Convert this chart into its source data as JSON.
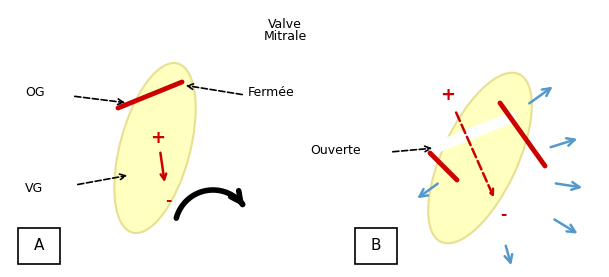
{
  "bg_color": "#ffffff",
  "ellipse_color": "#ffffc0",
  "ellipse_edge": "#e8e090",
  "red_color": "#cc0000",
  "blue_color": "#5599cc",
  "black_color": "#000000",
  "label_OG": "OG",
  "label_VG": "VG",
  "label_fermee": "Fermée",
  "label_ouverte": "Ouverte",
  "label_A": "A",
  "label_B": "B",
  "plus_text": "+",
  "minus_text": "-",
  "valve_label": "Valve",
  "mitrale_label": "Mitrale"
}
